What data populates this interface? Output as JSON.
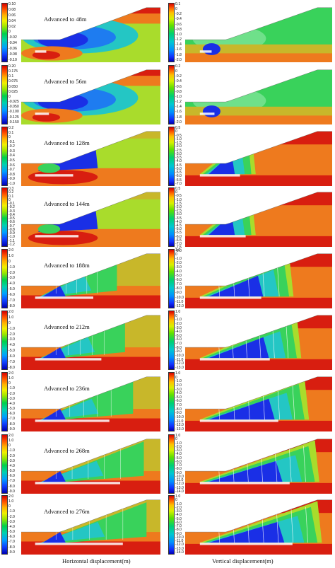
{
  "captions": {
    "horizontal": "Horizontal displacement(m)",
    "vertical": "Vertical displacement(m)"
  },
  "stages": [
    {
      "label": "Advanced to 48m",
      "advance": 48,
      "h_ticks": [
        "0.10",
        "0.08",
        "0.06",
        "0.04",
        "0.02",
        "0",
        "-0.02",
        "-0.04",
        "-0.06",
        "-0.08",
        "-0.10"
      ],
      "v_ticks": [
        "0.1",
        "0",
        "-0.2",
        "-0.4",
        "-0.6",
        "-0.8",
        "-1.0",
        "-1.2",
        "-1.4",
        "-1.6",
        "-1.8",
        "-2.0"
      ]
    },
    {
      "label": "Advanced to 56m",
      "advance": 56,
      "h_ticks": [
        "0.20",
        "0.175",
        "0.1",
        "0.075",
        "0.050",
        "0.025",
        "0",
        "-0.025",
        "-0.050",
        "-0.100",
        "-0.125",
        "-0.150"
      ],
      "v_ticks": [
        "0.2",
        "0",
        "-0.2",
        "-0.4",
        "-0.6",
        "-0.8",
        "-1.0",
        "-1.2",
        "-1.4",
        "-1.6",
        "-1.8",
        "-2.0"
      ]
    },
    {
      "label": "Advanced to 128m",
      "advance": 128,
      "h_ticks": [
        "0.2",
        "0.1",
        "0",
        "-0.1",
        "-0.2",
        "-0.3",
        "-0.4",
        "-0.5",
        "-0.6",
        "-0.7",
        "-0.8",
        "-0.9",
        "-1.0"
      ],
      "v_ticks": [
        "0.5",
        "0",
        "-0.5",
        "-1.0",
        "-1.5",
        "-2.0",
        "-2.5",
        "-3.0",
        "-3.5",
        "-4.0",
        "-4.5",
        "-5.0",
        "-5.5",
        "-6.0",
        "-6.5",
        "-7.0"
      ]
    },
    {
      "label": "Advanced to 144m",
      "advance": 144,
      "h_ticks": [
        "0.3",
        "0.2",
        "0.1",
        "0",
        "-0.1",
        "-0.2",
        "-0.3",
        "-0.4",
        "-0.5",
        "-0.6",
        "-0.7",
        "-0.8",
        "-0.9",
        "-1.0",
        "-1.1",
        "-1.2"
      ],
      "v_ticks": [
        "0.5",
        "0",
        "-0.5",
        "-1.0",
        "-1.5",
        "-2.0",
        "-2.5",
        "-3.0",
        "-3.5",
        "-4.0",
        "-4.5",
        "-5.0",
        "-5.5",
        "-6.0",
        "-6.5",
        "-7.0",
        "-7.5",
        "-8.0"
      ]
    },
    {
      "label": "Advanced to 188m",
      "advance": 188,
      "h_ticks": [
        "2.0",
        "1.0",
        "0",
        "-1.0",
        "-2.0",
        "-3.0",
        "-4.0",
        "-5.0",
        "-6.0",
        "-7.0",
        "-8.0"
      ],
      "v_ticks": [
        "1.0",
        "0",
        "-1.0",
        "-2.0",
        "-3.0",
        "-4.0",
        "-5.0",
        "-6.0",
        "-7.0",
        "-8.0",
        "-9.0",
        "-10.0",
        "-11.0",
        "-12.0"
      ]
    },
    {
      "label": "Advanced to 212m",
      "advance": 212,
      "h_ticks": [
        "2.0",
        "1.0",
        "0",
        "-1.0",
        "-2.0",
        "-3.0",
        "-4.0",
        "-5.0",
        "-6.0",
        "-7.0",
        "-8.0"
      ],
      "v_ticks": [
        "1.0",
        "0",
        "-1.0",
        "-2.0",
        "-3.0",
        "-4.0",
        "-5.0",
        "-6.0",
        "-7.0",
        "-8.0",
        "-9.0",
        "-10.0",
        "-11.0",
        "-12.0",
        "-13.0"
      ]
    },
    {
      "label": "Advanced to 236m",
      "advance": 236,
      "h_ticks": [
        "2.0",
        "1.0",
        "0",
        "-1.0",
        "-2.0",
        "-3.0",
        "-4.0",
        "-5.0",
        "-6.0",
        "-7.0",
        "-8.0",
        "-9.0"
      ],
      "v_ticks": [
        "1.0",
        "0",
        "-1.0",
        "-2.0",
        "-3.0",
        "-4.0",
        "-5.0",
        "-6.0",
        "-7.0",
        "-8.0",
        "-9.0",
        "-10.0",
        "-11.0",
        "-12.0",
        "-13.0"
      ]
    },
    {
      "label": "Advanced to 268m",
      "advance": 268,
      "h_ticks": [
        "2.0",
        "1.0",
        "0",
        "-1.0",
        "-2.0",
        "-3.0",
        "-4.0",
        "-5.0",
        "-6.0",
        "-7.0",
        "-8.0",
        "-9.0"
      ],
      "v_ticks": [
        "1.0",
        "0",
        "-1.0",
        "-2.0",
        "-3.0",
        "-4.0",
        "-5.0",
        "-6.0",
        "-7.0",
        "-8.0",
        "-9.0",
        "-10.0",
        "-11.0",
        "-12.0",
        "-13.0",
        "-14.0"
      ]
    },
    {
      "label": "Advanced to 276m",
      "advance": 276,
      "h_ticks": [
        "2.0",
        "1.0",
        "0",
        "-1.0",
        "-2.0",
        "-3.0",
        "-4.0",
        "-5.0",
        "-6.0",
        "-7.0",
        "-8.0",
        "-9.0"
      ],
      "v_ticks": [
        "1.0",
        "0",
        "-1.0",
        "-2.0",
        "-3.0",
        "-4.0",
        "-5.0",
        "-6.0",
        "-7.0",
        "-8.0",
        "-9.0",
        "-10.0",
        "-11.0",
        "-12.0",
        "-13.0",
        "-14.0"
      ]
    }
  ],
  "colors": {
    "red": "#d81e10",
    "orange": "#ee7a1e",
    "olive": "#c8b72a",
    "yellow_green": "#a9dc2c",
    "green": "#39d25b",
    "cyan": "#24c6c4",
    "blue": "#1a2fe6",
    "navy": "#0a0fa0"
  }
}
